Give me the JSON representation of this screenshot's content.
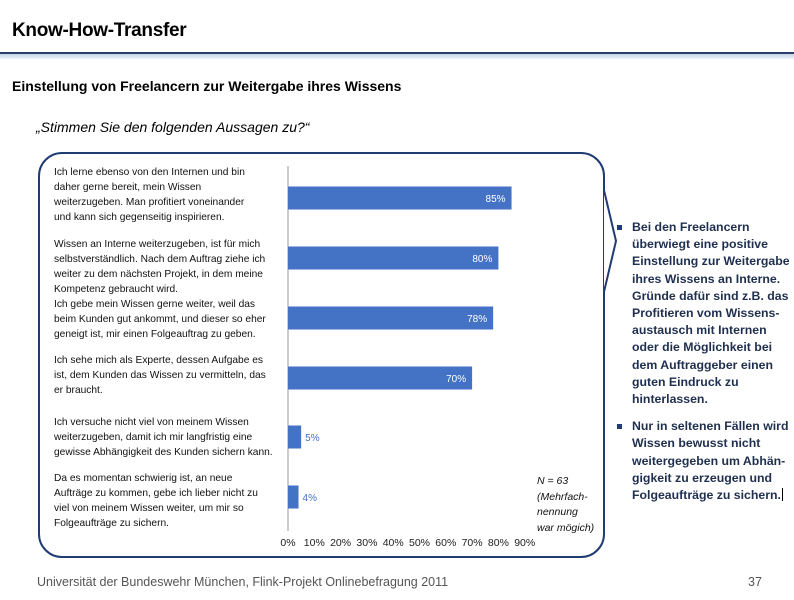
{
  "header": {
    "title": "Know-How-Transfer",
    "subtitle": "Einstellung von Freelancern zur Weitergabe ihres Wissens",
    "question": "„Stimmen Sie den folgenden Aussagen zu?“"
  },
  "chart_data": {
    "type": "bar",
    "orientation": "horizontal",
    "categories": [
      "Ich lerne ebenso von den Internen und bin daher gerne bereit, mein Wissen weiterzugeben. Man profitiert voneinander und kann sich gegenseitig inspirieren.",
      "Wissen an Interne weiterzugeben, ist für mich selbstverständlich. Nach dem Auftrag ziehe ich weiter zu dem nächsten Projekt, in dem meine Kompetenz gebraucht wird.",
      "Ich gebe mein Wissen gerne weiter, weil das beim Kunden gut ankommt, und dieser so eher geneigt ist, mir einen Folgeauftrag zu geben.",
      "Ich sehe mich als Experte, dessen Aufgabe es ist, dem Kunden das Wissen zu vermitteln, das er braucht.",
      "Ich versuche nicht viel von meinem Wissen weiterzugeben, damit ich mir langfristig eine gewisse Abhängigkeit des Kunden sichern kann.",
      "Da es momentan schwierig ist, an neue Aufträge zu kommen, gebe ich lieber nicht zu viel von meinem Wissen weiter, um mir so Folgeaufträge zu sichern."
    ],
    "category_lines": [
      [
        "Ich lerne ebenso von den Internen und bin",
        "daher gerne bereit, mein Wissen",
        "weiterzugeben. Man profitiert voneinander",
        "und kann sich gegenseitig inspirieren."
      ],
      [
        "Wissen an Interne weiterzugeben, ist für mich",
        "selbstverständlich. Nach dem Auftrag ziehe ich",
        "weiter zu dem nächsten Projekt, in dem meine",
        "Kompetenz gebraucht wird."
      ],
      [
        "Ich gebe mein Wissen gerne weiter, weil das",
        "beim Kunden gut ankommt, und dieser so eher",
        "geneigt ist, mir einen Folgeauftrag zu geben."
      ],
      [
        "Ich sehe mich als Experte, dessen Aufgabe es",
        "ist, dem Kunden das Wissen zu vermitteln, das",
        "er braucht."
      ],
      [
        "Ich versuche nicht viel von meinem Wissen",
        "weiterzugeben, damit ich mir langfristig eine",
        "gewisse Abhängigkeit des Kunden sichern kann."
      ],
      [
        "Da es momentan schwierig ist, an neue",
        "Aufträge zu kommen, gebe ich lieber nicht zu",
        "viel von meinem Wissen weiter, um mir so",
        "Folgeaufträge zu sichern."
      ]
    ],
    "values": [
      85,
      80,
      78,
      70,
      5,
      4
    ],
    "data_labels": [
      "85%",
      "80%",
      "78%",
      "70%",
      "5%",
      "4%"
    ],
    "x_ticks": [
      "0%",
      "10%",
      "20%",
      "30%",
      "40%",
      "50%",
      "60%",
      "70%",
      "80%",
      "90%"
    ],
    "xlim": [
      0,
      90
    ],
    "unit": "%",
    "bar_color": "#4472c4",
    "grid": false,
    "note": "N = 63\n(Mehrfach-\nnennung\n war mögich)"
  },
  "findings": [
    "Bei den Freelancern überwiegt eine positive Einstellung zur Weitergabe ihres Wissens an Interne. Gründe dafür sind z.B. das Profitieren vom Wissens-austausch mit Internen oder die Möglichkeit bei dem Auftraggeber einen guten Eindruck zu hinterlassen.",
    "Nur in seltenen Fällen wird Wissen bewusst nicht weitergegeben um Abhän-gigkeit zu erzeugen und Folgeaufträge zu sichern."
  ],
  "footer": {
    "source": "Universität der Bundeswehr München, Flink-Projekt Onlinebefragung  2011",
    "page": "37"
  },
  "colors": {
    "accent": "#1f3c73",
    "bar": "#4472c4",
    "findings_text": "#1f2f4f"
  }
}
